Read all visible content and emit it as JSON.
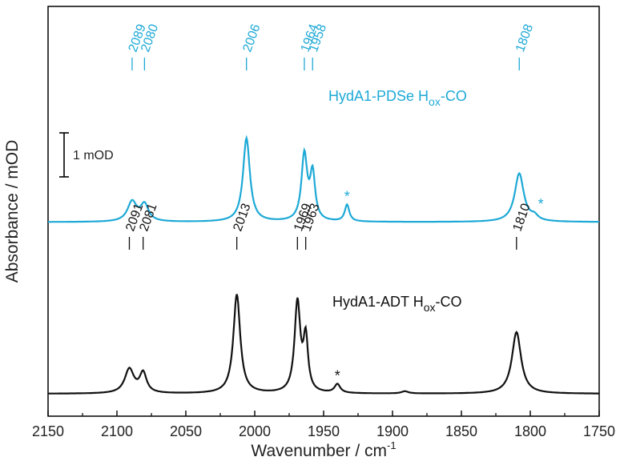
{
  "chart_data": {
    "type": "line",
    "xlabel": "Wavenumber / cm",
    "xlabel_sup": "-1",
    "ylabel": "Absorbance / mOD",
    "xlim": [
      2150,
      1750
    ],
    "x_reversed": true,
    "xticks": [
      2150,
      2100,
      2050,
      2000,
      1950,
      1900,
      1850,
      1800,
      1750
    ],
    "y_ticks_shown": false,
    "grid": false,
    "scale_bar": {
      "label": "1 mOD",
      "value_mOD": 1
    },
    "series": [
      {
        "label_main": "HydA1-PDSe H",
        "label_sub": "ox",
        "label_tail": "-CO",
        "color": "#1ea9d6",
        "offset_mOD": 3.9,
        "peaks": [
          {
            "x": 2089,
            "height": 0.45,
            "width": 4,
            "label": "2089"
          },
          {
            "x": 2080,
            "height": 0.38,
            "width": 3.5,
            "label": "2080"
          },
          {
            "x": 2006,
            "height": 1.9,
            "width": 3,
            "label": "2006"
          },
          {
            "x": 1964,
            "height": 1.5,
            "width": 2.5,
            "label": "1964"
          },
          {
            "x": 1958,
            "height": 1.05,
            "width": 2.2,
            "label": "1958"
          },
          {
            "x": 1933,
            "height": 0.38,
            "width": 2,
            "label": "",
            "star": true
          },
          {
            "x": 1808,
            "height": 1.1,
            "width": 4,
            "label": "1808"
          },
          {
            "x": 1797,
            "height": 0.1,
            "width": 3,
            "label": "",
            "star": true
          }
        ]
      },
      {
        "label_main": "HydA1-ADT H",
        "label_sub": "ox",
        "label_tail": "-CO",
        "color": "#111111",
        "offset_mOD": 0.0,
        "peaks": [
          {
            "x": 2091,
            "height": 0.55,
            "width": 4,
            "label": "2091"
          },
          {
            "x": 2081,
            "height": 0.45,
            "width": 3,
            "label": "2081"
          },
          {
            "x": 2013,
            "height": 2.25,
            "width": 3,
            "label": "2013"
          },
          {
            "x": 1969,
            "height": 2.05,
            "width": 2.5,
            "label": "1969"
          },
          {
            "x": 1963,
            "height": 1.2,
            "width": 2,
            "label": "1963"
          },
          {
            "x": 1940,
            "height": 0.2,
            "width": 2.5,
            "label": "",
            "star": true
          },
          {
            "x": 1891,
            "height": 0.05,
            "width": 3,
            "label": ""
          },
          {
            "x": 1810,
            "height": 1.4,
            "width": 4,
            "label": "1810"
          }
        ]
      }
    ]
  }
}
